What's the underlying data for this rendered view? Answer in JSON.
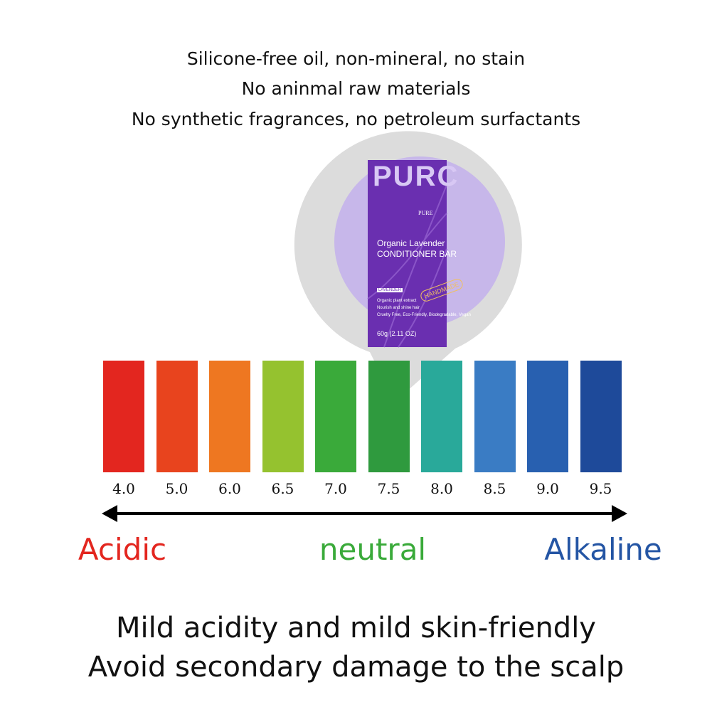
{
  "header": {
    "lines": [
      "Silicone-free oil, non-mineral, no stain",
      "No aninmal raw materials",
      "No synthetic fragrances, no petroleum surfactants"
    ]
  },
  "product": {
    "logo": "PURC",
    "brand": "PURE",
    "name": "Organic Lavender",
    "product": "CONDITIONER BAR",
    "tag": "LAVENDER",
    "stamp": "HANDMADE",
    "details": [
      "Organic plant extract",
      "Nourish and shine hair",
      "Cruelty Free, Eco-Friendly, Biodegradable, Vegan"
    ],
    "weight": "60g (2.11 OZ)"
  },
  "scale": {
    "items": [
      {
        "label": "4.0",
        "color": "#e3261f"
      },
      {
        "label": "5.0",
        "color": "#e8441e"
      },
      {
        "label": "6.0",
        "color": "#ee7721"
      },
      {
        "label": "6.5",
        "color": "#95c22f"
      },
      {
        "label": "7.0",
        "color": "#3aaa3a"
      },
      {
        "label": "7.5",
        "color": "#2f9a3e"
      },
      {
        "label": "8.0",
        "color": "#29a99a"
      },
      {
        "label": "8.5",
        "color": "#3a7cc4"
      },
      {
        "label": "9.0",
        "color": "#2860b0"
      },
      {
        "label": "9.5",
        "color": "#1e4a9a"
      }
    ],
    "ends": [
      {
        "label": "Acidic",
        "color": "#e3261f"
      },
      {
        "label": "neutral",
        "color": "#3aaa3a"
      },
      {
        "label": "Alkaline",
        "color": "#2455a4"
      }
    ]
  },
  "footer": {
    "lines": [
      "Mild acidity and mild skin-friendly",
      "Avoid secondary damage to the scalp"
    ]
  }
}
